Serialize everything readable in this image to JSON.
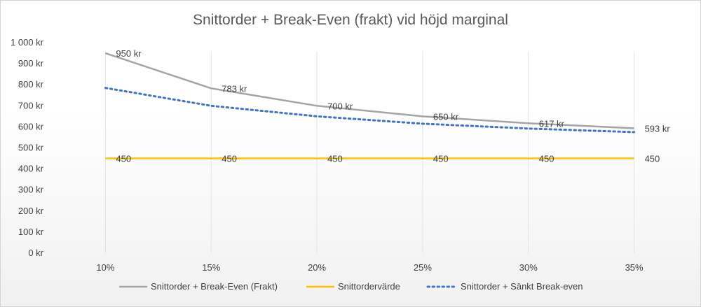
{
  "chart_data": {
    "type": "line",
    "title": "Snittorder  + Break-Even  (frakt)  vid höjd marginal",
    "categories": [
      "10%",
      "15%",
      "20%",
      "25%",
      "30%",
      "35%"
    ],
    "ylim": [
      0,
      1000
    ],
    "yticks": [
      0,
      100,
      200,
      300,
      400,
      500,
      600,
      700,
      800,
      900,
      1000
    ],
    "ytick_labels": [
      "0 kr",
      "100 kr",
      "200 kr",
      "300 kr",
      "400 kr",
      "500 kr",
      "600 kr",
      "700 kr",
      "800 kr",
      "900 kr",
      "1 000 kr"
    ],
    "grid": "vertical",
    "legend_position": "bottom",
    "series": [
      {
        "name": "Snittorder + Break-Even (Frakt)",
        "values": [
          950,
          783,
          700,
          650,
          617,
          593
        ],
        "labels": [
          "950 kr",
          "783 kr",
          "700 kr",
          "650 kr",
          "617 kr",
          "593 kr"
        ],
        "color": "#a5a5a5",
        "style": "solid"
      },
      {
        "name": "Snittordervärde",
        "values": [
          450,
          450,
          450,
          450,
          450,
          450
        ],
        "labels": [
          "450",
          "450",
          "450",
          "450",
          "450",
          "450"
        ],
        "color": "#ffc000",
        "style": "solid"
      },
      {
        "name": "Snittorder + Sänkt Break-even",
        "values": [
          785,
          700,
          650,
          615,
          592,
          575
        ],
        "color": "#4472c4",
        "style": "dotted"
      }
    ]
  }
}
